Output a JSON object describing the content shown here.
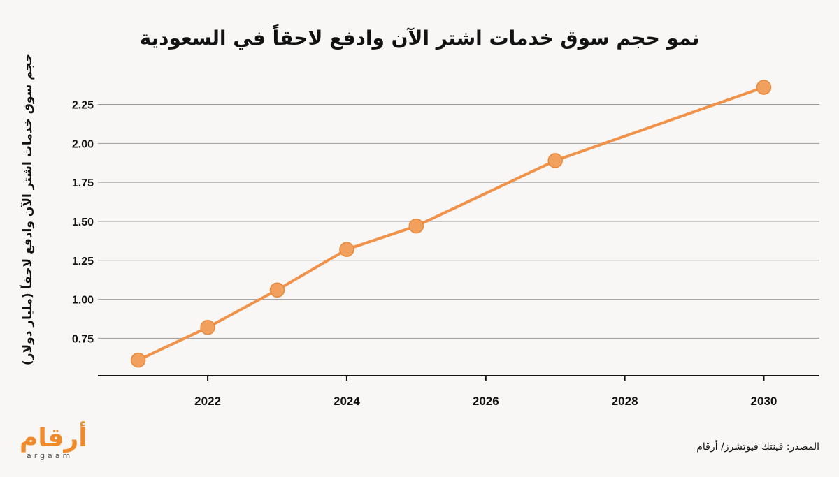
{
  "chart_data": {
    "type": "line",
    "title": "نمو حجم سوق خدمات اشتر الآن وادفع لاحقاً في السعودية",
    "xlabel": "",
    "ylabel": "حجم سوق خدمات اشتر الآن وادفع لاحقاً (مليار دولار)",
    "x": [
      2021,
      2022,
      2023,
      2024,
      2025,
      2027,
      2030
    ],
    "series": [
      {
        "name": "market size",
        "values": [
          0.61,
          0.82,
          1.06,
          1.32,
          1.47,
          1.89,
          2.36
        ],
        "color": "#f0924a"
      }
    ],
    "xticks": [
      "2022",
      "2024",
      "2026",
      "2028",
      "2030"
    ],
    "yticks": [
      "0.75",
      "1.00",
      "1.25",
      "1.50",
      "1.75",
      "2.00",
      "2.25"
    ],
    "xlim": [
      2020.42,
      2030.8
    ],
    "ylim": [
      0.51,
      2.36
    ],
    "grid": true
  },
  "source": "المصدر: فينتك فيوتشرز/ أرقام",
  "logo": {
    "ar": "أرقام",
    "en": "argaam"
  }
}
